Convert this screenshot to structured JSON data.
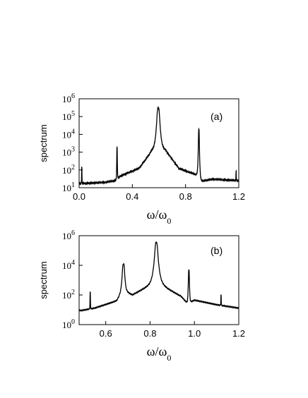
{
  "chart_data": [
    {
      "type": "line",
      "panel_label": "(a)",
      "xlabel": "ω/ω",
      "xlabel_sub": "0",
      "ylabel": "spectrum",
      "xlim": [
        0.0,
        1.2
      ],
      "ylim": [
        10,
        1000000
      ],
      "yscale": "log",
      "xticks": [
        0.0,
        0.4,
        0.8,
        1.2
      ],
      "xtick_labels": [
        "0.0",
        "0.4",
        "0.8",
        "1.2"
      ],
      "yticks": [
        10,
        100,
        1000,
        10000,
        100000,
        1000000
      ],
      "ytick_labels": [
        {
          "base": "10",
          "exp": "1"
        },
        {
          "base": "10",
          "exp": "2"
        },
        {
          "base": "10",
          "exp": "3"
        },
        {
          "base": "10",
          "exp": "4"
        },
        {
          "base": "10",
          "exp": "5"
        },
        {
          "base": "10",
          "exp": "6"
        }
      ],
      "baseline": [
        [
          0.0,
          17
        ],
        [
          0.2,
          20
        ],
        [
          0.28,
          26
        ],
        [
          0.31,
          45
        ],
        [
          0.45,
          120
        ],
        [
          0.55,
          1200
        ],
        [
          0.6,
          1800
        ],
        [
          0.65,
          1200
        ],
        [
          0.75,
          120
        ],
        [
          0.89,
          50
        ],
        [
          0.91,
          22
        ],
        [
          1.0,
          30
        ],
        [
          1.2,
          25
        ]
      ],
      "peaks": [
        {
          "x": 0.02,
          "y": 130,
          "width": 0.003
        },
        {
          "x": 0.285,
          "y": 1800,
          "width": 0.004
        },
        {
          "x": 0.595,
          "y": 300000,
          "width": 0.02
        },
        {
          "x": 0.9,
          "y": 20000,
          "width": 0.006
        },
        {
          "x": 1.18,
          "y": 60,
          "width": 0.003
        }
      ],
      "grid": false
    },
    {
      "type": "line",
      "panel_label": "(b)",
      "xlabel": "ω/ω",
      "xlabel_sub": "0",
      "ylabel": "spectrum",
      "xlim": [
        0.48,
        1.2
      ],
      "ylim": [
        1,
        1000000
      ],
      "yscale": "log",
      "xticks": [
        0.6,
        0.8,
        1.0,
        1.2
      ],
      "xtick_labels": [
        "0.6",
        "0.8",
        "1.0",
        "1.2"
      ],
      "yticks": [
        1,
        100,
        10000,
        1000000
      ],
      "ytick_labels": [
        {
          "base": "10",
          "exp": "0"
        },
        {
          "base": "10",
          "exp": "2"
        },
        {
          "base": "10",
          "exp": "4"
        },
        {
          "base": "10",
          "exp": "6"
        }
      ],
      "baseline": [
        [
          0.49,
          9
        ],
        [
          0.55,
          13
        ],
        [
          0.65,
          40
        ],
        [
          0.68,
          200
        ],
        [
          0.72,
          100
        ],
        [
          0.78,
          300
        ],
        [
          0.83,
          700
        ],
        [
          0.88,
          250
        ],
        [
          0.94,
          80
        ],
        [
          0.97,
          25
        ],
        [
          1.0,
          45
        ],
        [
          1.1,
          22
        ],
        [
          1.2,
          13
        ]
      ],
      "peaks": [
        {
          "x": 0.53,
          "y": 150,
          "width": 0.002
        },
        {
          "x": 0.68,
          "y": 12000,
          "width": 0.01
        },
        {
          "x": 0.828,
          "y": 350000,
          "width": 0.012
        },
        {
          "x": 0.975,
          "y": 5000,
          "width": 0.004
        },
        {
          "x": 1.12,
          "y": 80,
          "width": 0.002
        }
      ],
      "grid": false
    }
  ]
}
